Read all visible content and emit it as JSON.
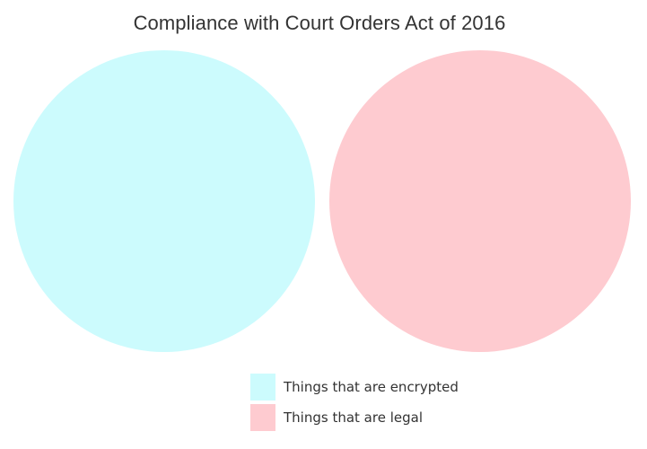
{
  "title": "Compliance with Court Orders Act of 2016",
  "sets": [
    {
      "label": "Things that are encrypted",
      "color": "#ccfbfd"
    },
    {
      "label": "Things that are legal",
      "color": "#fecbd0"
    }
  ],
  "overlap": "none"
}
